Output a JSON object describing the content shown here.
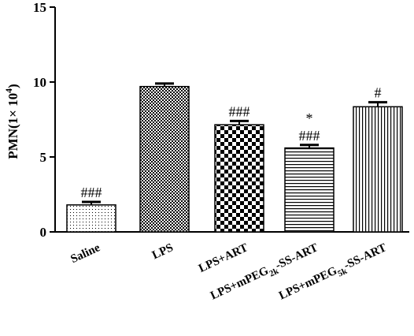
{
  "chart_data": {
    "type": "bar",
    "ylabel": {
      "prefix": "PMN(1× 10",
      "sup": "4",
      "suffix": ")"
    },
    "ylim": [
      0,
      15
    ],
    "yticks": [
      "0",
      "5",
      "10",
      "15"
    ],
    "grid": false,
    "categories": [
      {
        "label": "Saline",
        "sub": null,
        "rest": null
      },
      {
        "label": "LPS",
        "sub": null,
        "rest": null
      },
      {
        "label": "LPS+ART",
        "sub": null,
        "rest": null
      },
      {
        "label": "LPS+mPEG",
        "sub": "2k",
        "rest": "-SS-ART"
      },
      {
        "label": "LPS+mPEG",
        "sub": "5k",
        "rest": "-SS-ART"
      }
    ],
    "values": [
      1.8,
      9.7,
      7.15,
      5.6,
      8.35
    ],
    "errors": [
      0.2,
      0.2,
      0.25,
      0.2,
      0.3
    ],
    "annotations": [
      [
        "###"
      ],
      [],
      [
        "###"
      ],
      [
        "###",
        "*"
      ],
      [
        "#"
      ]
    ],
    "patterns": [
      "dots",
      "fine-check",
      "checker",
      "hlines",
      "vlines"
    ]
  }
}
